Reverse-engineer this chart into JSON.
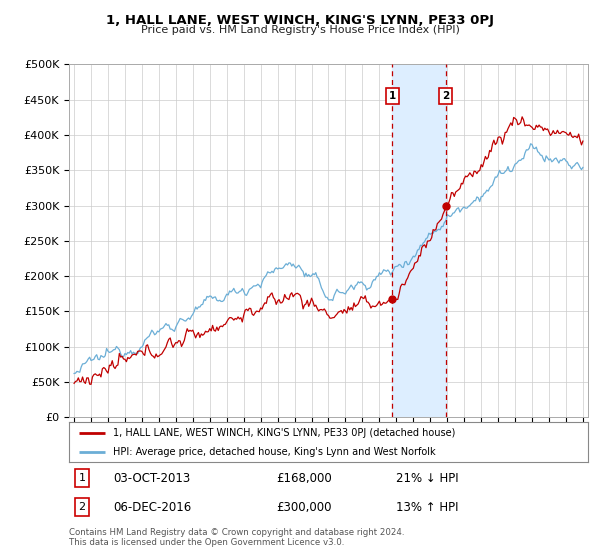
{
  "title": "1, HALL LANE, WEST WINCH, KING'S LYNN, PE33 0PJ",
  "subtitle": "Price paid vs. HM Land Registry's House Price Index (HPI)",
  "ylabel_ticks": [
    "£0",
    "£50K",
    "£100K",
    "£150K",
    "£200K",
    "£250K",
    "£300K",
    "£350K",
    "£400K",
    "£450K",
    "£500K"
  ],
  "ytick_values": [
    0,
    50000,
    100000,
    150000,
    200000,
    250000,
    300000,
    350000,
    400000,
    450000,
    500000
  ],
  "hpi_color": "#6baed6",
  "price_color": "#c00000",
  "span_color": "#ddeeff",
  "transaction1_year": 2013.75,
  "transaction1_price": 168000,
  "transaction2_year": 2016.916,
  "transaction2_price": 300000,
  "legend_line1": "1, HALL LANE, WEST WINCH, KING'S LYNN, PE33 0PJ (detached house)",
  "legend_line2": "HPI: Average price, detached house, King's Lynn and West Norfolk",
  "row1_date": "03-OCT-2013",
  "row1_price": "£168,000",
  "row1_pct": "21% ↓ HPI",
  "row2_date": "06-DEC-2016",
  "row2_price": "£300,000",
  "row2_pct": "13% ↑ HPI",
  "footnote": "Contains HM Land Registry data © Crown copyright and database right 2024.\nThis data is licensed under the Open Government Licence v3.0.",
  "background_color": "#ffffff",
  "grid_color": "#cccccc"
}
